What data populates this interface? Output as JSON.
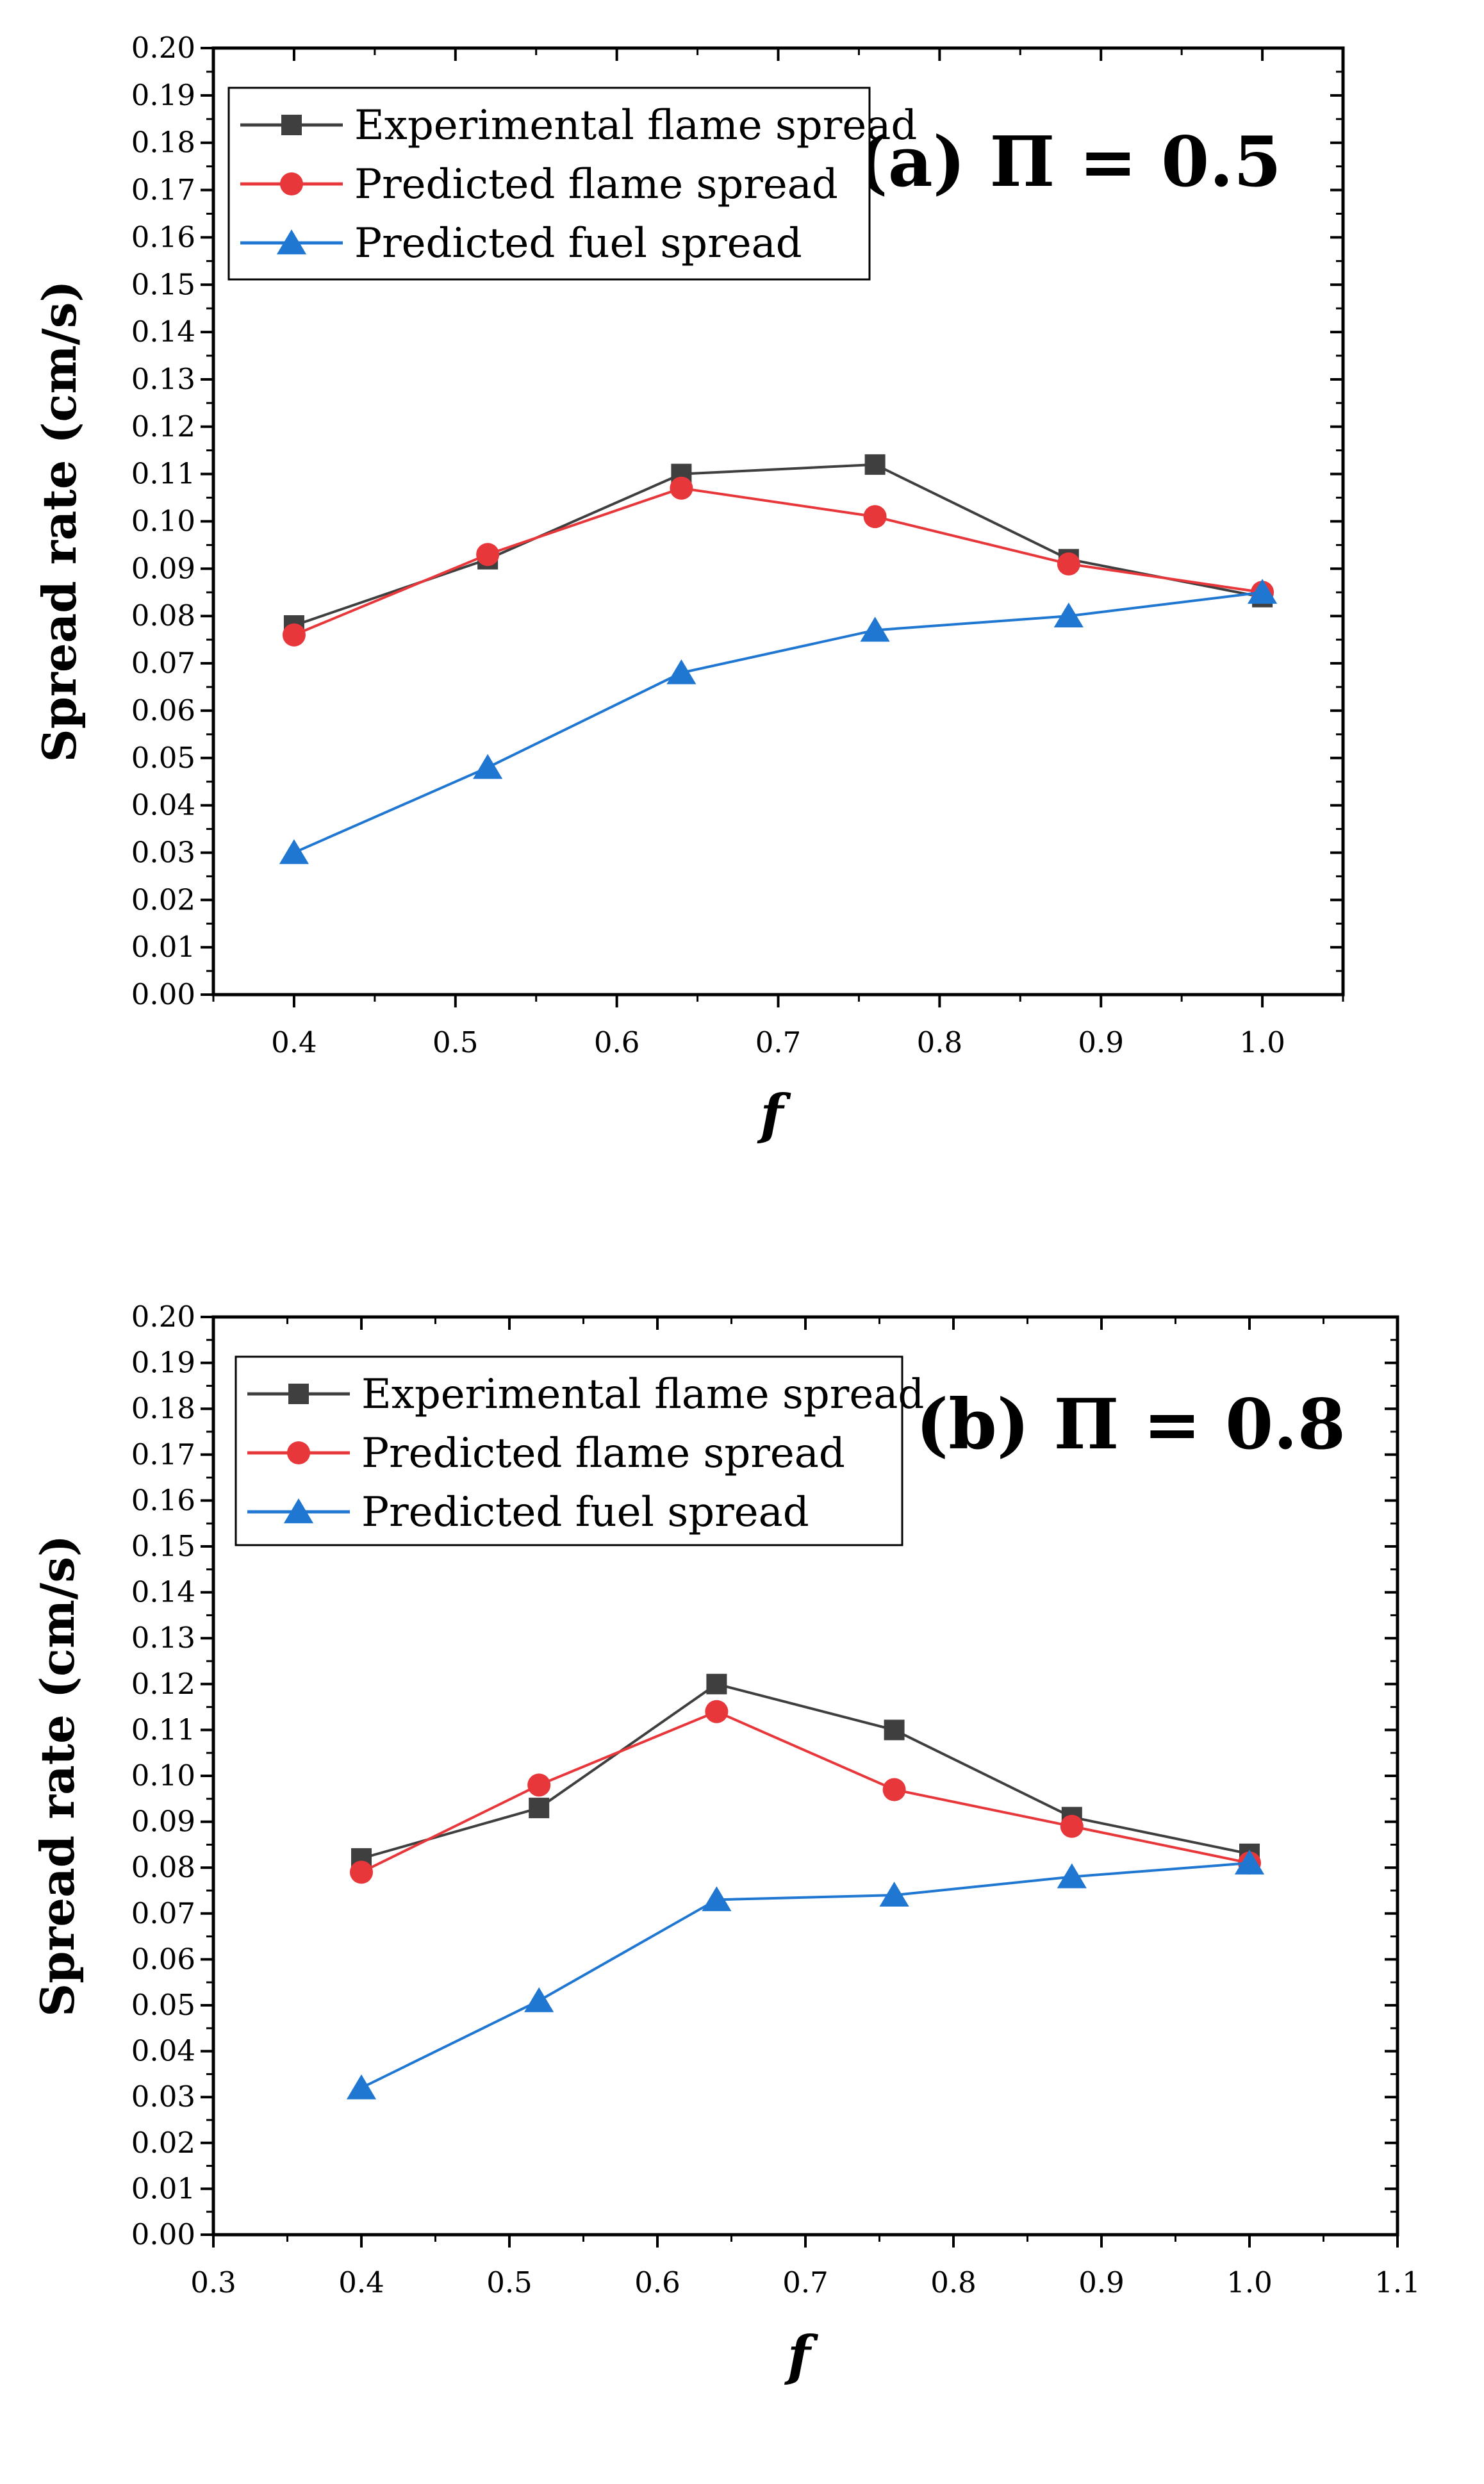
{
  "chart_data": [
    {
      "type": "line",
      "panel_label": "(a) Π = 0.5",
      "xlabel": "f",
      "ylabel": "Spread rate (cm/s)",
      "xlim": [
        0.35,
        1.05
      ],
      "xticks": [
        "0.4",
        "0.5",
        "0.6",
        "0.7",
        "0.8",
        "0.9",
        "1.0"
      ],
      "ylim": [
        0.0,
        0.2
      ],
      "yticks": [
        "0.00",
        "0.01",
        "0.02",
        "0.03",
        "0.04",
        "0.05",
        "0.06",
        "0.07",
        "0.08",
        "0.09",
        "0.10",
        "0.11",
        "0.12",
        "0.13",
        "0.14",
        "0.15",
        "0.16",
        "0.17",
        "0.18",
        "0.19",
        "0.20"
      ],
      "legend_position": "top-left",
      "x": [
        0.4,
        0.52,
        0.64,
        0.76,
        0.88,
        1.0
      ],
      "series": [
        {
          "name": "Experimental flame spread",
          "color": "#3f3f3f",
          "marker": "square",
          "values": [
            0.078,
            0.092,
            0.11,
            0.112,
            0.092,
            0.084
          ]
        },
        {
          "name": "Predicted flame spread",
          "color": "#e8373a",
          "marker": "circle",
          "values": [
            0.076,
            0.093,
            0.107,
            0.101,
            0.091,
            0.085
          ]
        },
        {
          "name": "Predicted fuel spread",
          "color": "#1f77d2",
          "marker": "triangle",
          "values": [
            0.03,
            0.048,
            0.068,
            0.077,
            0.08,
            0.085
          ]
        }
      ]
    },
    {
      "type": "line",
      "panel_label": "(b) Π = 0.8",
      "xlabel": "f",
      "ylabel": "Spread rate (cm/s)",
      "xlim": [
        0.3,
        1.1
      ],
      "xticks": [
        "0.3",
        "0.4",
        "0.5",
        "0.6",
        "0.7",
        "0.8",
        "0.9",
        "1.0",
        "1.1"
      ],
      "ylim": [
        0.0,
        0.2
      ],
      "yticks": [
        "0.00",
        "0.01",
        "0.02",
        "0.03",
        "0.04",
        "0.05",
        "0.06",
        "0.07",
        "0.08",
        "0.09",
        "0.10",
        "0.11",
        "0.12",
        "0.13",
        "0.14",
        "0.15",
        "0.16",
        "0.17",
        "0.18",
        "0.19",
        "0.20"
      ],
      "legend_position": "top-left",
      "x": [
        0.4,
        0.52,
        0.64,
        0.76,
        0.88,
        1.0
      ],
      "series": [
        {
          "name": "Experimental flame spread",
          "color": "#3f3f3f",
          "marker": "square",
          "values": [
            0.082,
            0.093,
            0.12,
            0.11,
            0.091,
            0.083
          ]
        },
        {
          "name": "Predicted flame spread",
          "color": "#e8373a",
          "marker": "circle",
          "values": [
            0.079,
            0.098,
            0.114,
            0.097,
            0.089,
            0.081
          ]
        },
        {
          "name": "Predicted fuel spread",
          "color": "#1f77d2",
          "marker": "triangle",
          "values": [
            0.032,
            0.051,
            0.073,
            0.074,
            0.078,
            0.081
          ]
        }
      ]
    }
  ]
}
